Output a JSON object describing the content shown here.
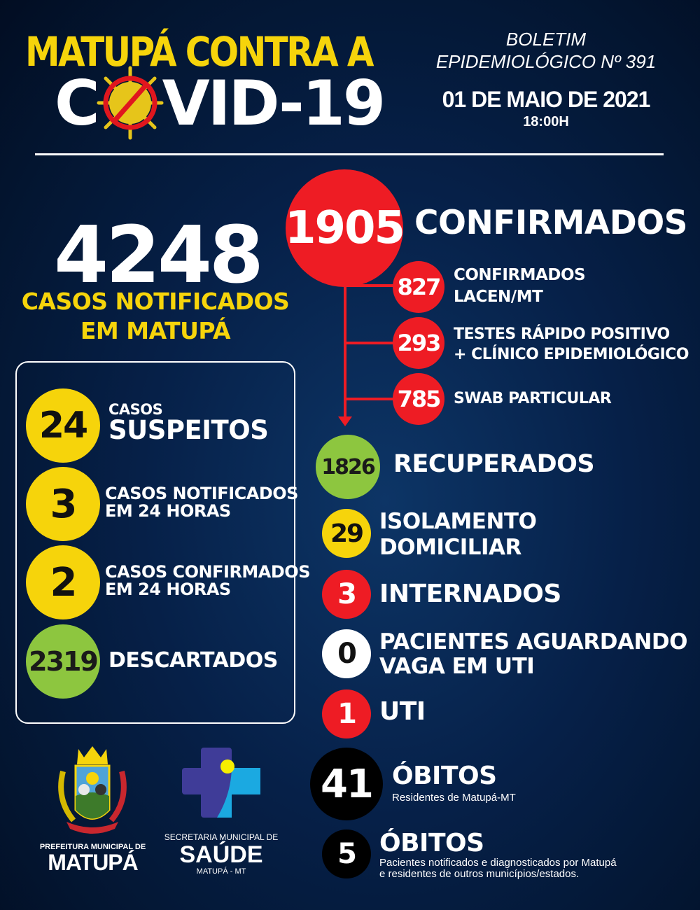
{
  "header": {
    "title_line1": "MATUPÁ CONTRA A",
    "title_line2_prefix": "C",
    "title_line2_suffix": "VID-19",
    "bulletin_line1": "BOLETIM",
    "bulletin_line2": "EPIDEMIOLÓGICO Nº 391",
    "date": "01 DE MAIO DE 2021",
    "time": "18:00H"
  },
  "notified": {
    "value": "4248",
    "label_line1": "CASOS NOTIFICADOS",
    "label_line2": "EM MATUPÁ"
  },
  "left_box": [
    {
      "value": "24",
      "label_small": "CASOS",
      "label_big": "SUSPEITOS",
      "color": "#f6d40b"
    },
    {
      "value": "3",
      "label_line1": "CASOS NOTIFICADOS",
      "label_line2": "EM 24 HORAS",
      "color": "#f6d40b"
    },
    {
      "value": "2",
      "label_line1": "CASOS CONFIRMADOS",
      "label_line2": "EM 24 HORAS",
      "color": "#f6d40b"
    },
    {
      "value": "2319",
      "label": "DESCARTADOS",
      "color": "#8dc63f"
    }
  ],
  "confirmed": {
    "value": "1905",
    "label": "CONFIRMADOS",
    "color": "#ee1c24",
    "breakdown": [
      {
        "value": "827",
        "label_line1": "CONFIRMADOS",
        "label_line2": "LACEN/MT"
      },
      {
        "value": "293",
        "label_line1": "TESTES RÁPIDO POSITIVO",
        "label_line2": "+ CLÍNICO EPIDEMIOLÓGICO"
      },
      {
        "value": "785",
        "label_line1": "SWAB PARTICULAR"
      }
    ]
  },
  "recovered": {
    "value": "1826",
    "label": "RECUPERADOS",
    "color": "#8dc63f"
  },
  "isolation": {
    "value": "29",
    "label_line1": "ISOLAMENTO",
    "label_line2": "DOMICILIAR",
    "color": "#f6d40b"
  },
  "hospitalized": {
    "value": "3",
    "label": "INTERNADOS",
    "color": "#ee1c24"
  },
  "awaiting_icu": {
    "value": "0",
    "label_line1": "PACIENTES AGUARDANDO",
    "label_line2": "VAGA EM UTI",
    "color": "#ffffff"
  },
  "icu": {
    "value": "1",
    "label": "UTI",
    "color": "#ee1c24"
  },
  "deaths_residents": {
    "value": "41",
    "label": "ÓBITOS",
    "note": "Residentes de Matupá-MT",
    "color": "#000000"
  },
  "deaths_others": {
    "value": "5",
    "label": "ÓBITOS",
    "note_line1": "Pacientes notificados e diagnosticados por Matupá",
    "note_line2": "e residentes de outros municípios/estados.",
    "color": "#000000"
  },
  "logos": {
    "prefeitura_line1": "PREFEITURA MUNICIPAL DE",
    "prefeitura_line2": "MATUPÁ",
    "crest_banner": "MATUPÁ",
    "saude_line1": "SECRETARIA MUNICIPAL DE",
    "saude_line2": "SAÚDE",
    "saude_line3": "MATUPÁ - MT"
  }
}
